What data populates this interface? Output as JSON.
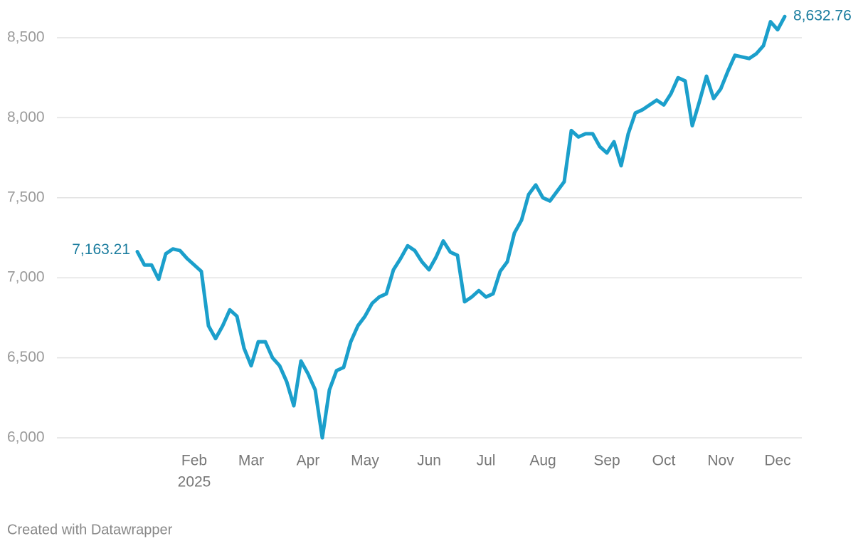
{
  "chart_data": {
    "type": "line",
    "categories": [
      null,
      null,
      null,
      null,
      null,
      null,
      null,
      null,
      "Feb",
      null,
      null,
      null,
      null,
      null,
      null,
      null,
      "Mar",
      null,
      null,
      null,
      null,
      null,
      null,
      null,
      "Apr",
      null,
      null,
      null,
      null,
      null,
      null,
      null,
      "May",
      null,
      null,
      null,
      null,
      null,
      null,
      null,
      null,
      "Jun",
      null,
      null,
      null,
      null,
      null,
      null,
      null,
      "Jul",
      null,
      null,
      null,
      null,
      null,
      null,
      null,
      "Aug",
      null,
      null,
      null,
      null,
      null,
      null,
      null,
      null,
      "Sep",
      null,
      null,
      null,
      null,
      null,
      null,
      null,
      "Oct",
      null,
      null,
      null,
      null,
      null,
      null,
      null,
      "Nov",
      null,
      null,
      null,
      null,
      null,
      null,
      null,
      "Dec",
      null
    ],
    "year_label": "2025",
    "values": [
      7163.21,
      7080,
      7080,
      6990,
      7150,
      7180,
      7170,
      7120,
      7080,
      7040,
      6700,
      6620,
      6700,
      6800,
      6760,
      6560,
      6450,
      6600,
      6600,
      6500,
      6450,
      6350,
      6200,
      6480,
      6400,
      6300,
      6000,
      6300,
      6420,
      6440,
      6600,
      6700,
      6760,
      6840,
      6880,
      6900,
      7050,
      7120,
      7200,
      7170,
      7100,
      7050,
      7130,
      7230,
      7160,
      7140,
      6850,
      6880,
      6920,
      6880,
      6900,
      7040,
      7100,
      7280,
      7360,
      7520,
      7580,
      7500,
      7480,
      7540,
      7600,
      7920,
      7880,
      7900,
      7900,
      7820,
      7780,
      7850,
      7700,
      7900,
      8030,
      8050,
      8080,
      8110,
      8080,
      8150,
      8250,
      8230,
      7950,
      8100,
      8260,
      8120,
      8180,
      8290,
      8390,
      8380,
      8370,
      8400,
      8450,
      8600,
      8550,
      8632.76
    ],
    "value_labels": [
      "7,163.21",
      null,
      null,
      null,
      null,
      null,
      null,
      null,
      null,
      null,
      null,
      null,
      null,
      null,
      null,
      null,
      null,
      null,
      null,
      null,
      null,
      null,
      null,
      null,
      null,
      null,
      null,
      null,
      null,
      null,
      null,
      null,
      null,
      null,
      null,
      null,
      null,
      null,
      null,
      null,
      null,
      null,
      null,
      null,
      null,
      null,
      null,
      null,
      null,
      null,
      null,
      null,
      null,
      null,
      null,
      null,
      null,
      null,
      null,
      null,
      null,
      null,
      null,
      null,
      null,
      null,
      null,
      null,
      null,
      null,
      null,
      null,
      null,
      null,
      null,
      null,
      null,
      null,
      null,
      null,
      null,
      null,
      null,
      null,
      null,
      null,
      null,
      null,
      null,
      null,
      null,
      "8,632.76"
    ],
    "color": "#1b9fcb",
    "ylim": [
      5950,
      8700
    ],
    "yticks": [
      {
        "value": 6000,
        "label": "6,000"
      },
      {
        "value": 6500,
        "label": "6,500"
      },
      {
        "value": 7000,
        "label": "7,000"
      },
      {
        "value": 7500,
        "label": "7,500"
      },
      {
        "value": 8000,
        "label": "8,000"
      },
      {
        "value": 8500,
        "label": "8,500"
      }
    ],
    "grid": true,
    "footer": "Created with Datawrapper"
  }
}
